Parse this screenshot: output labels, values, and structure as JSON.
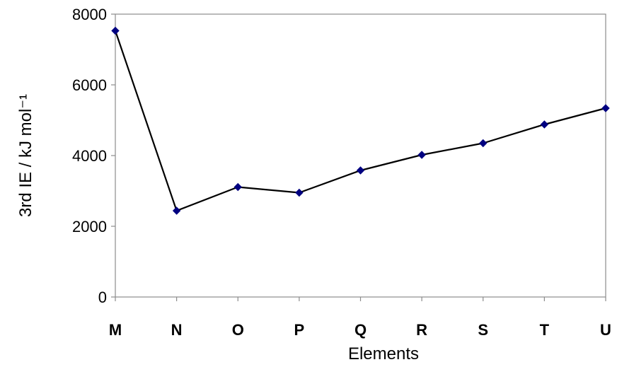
{
  "chart_data": {
    "type": "line",
    "categories": [
      "M",
      "N",
      "O",
      "P",
      "Q",
      "R",
      "S",
      "T",
      "U"
    ],
    "values": [
      7530,
      2440,
      3110,
      2950,
      3580,
      4020,
      4350,
      4880,
      5340
    ],
    "xlabel": "Elements",
    "ylabel": "3rd IE / kJ mol⁻¹",
    "ylim": [
      0,
      8000
    ],
    "yticks": [
      "0",
      "2000",
      "4000",
      "6000",
      "8000"
    ],
    "grid": false,
    "legend": "none",
    "line_color": "#000000",
    "marker_color": "#000080"
  }
}
